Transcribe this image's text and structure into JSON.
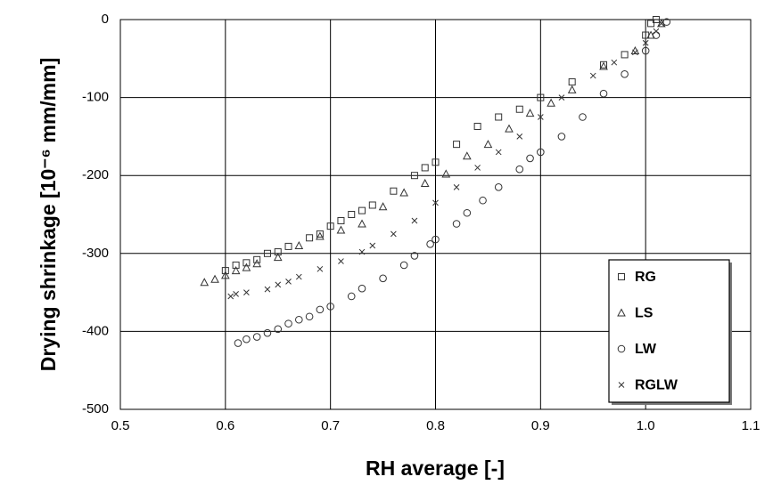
{
  "chart_data": {
    "type": "scatter",
    "xlabel": "RH average [-]",
    "ylabel": "Drying shrinkage [10⁻⁶ mm/mm]",
    "xlim": [
      0.5,
      1.1
    ],
    "xticks": [
      0.5,
      0.6,
      0.7,
      0.8,
      0.9,
      {
        "value": 1,
        "label": "1.0"
      },
      1.1
    ],
    "ylim": [
      -500,
      0
    ],
    "yticks": [
      0,
      -100,
      -200,
      -300,
      -400,
      -500
    ],
    "grid": true,
    "legend": "lower right",
    "series": [
      {
        "name": "RG",
        "color": "#333333",
        "marker": "square",
        "x": [
          0.6,
          0.61,
          0.62,
          0.63,
          0.64,
          0.65,
          0.66,
          0.68,
          0.69,
          0.7,
          0.71,
          0.72,
          0.73,
          0.74,
          0.76,
          0.78,
          0.79,
          0.8,
          0.82,
          0.84,
          0.86,
          0.88,
          0.9,
          0.93,
          0.96,
          0.98,
          1.0,
          1.005,
          1.01
        ],
        "values": [
          -322,
          -315,
          -312,
          -308,
          -300,
          -298,
          -291,
          -280,
          -275,
          -265,
          -258,
          -250,
          -245,
          -238,
          -220,
          -200,
          -190,
          -183,
          -160,
          -137,
          -125,
          -115,
          -100,
          -80,
          -58,
          -45,
          -20,
          -5,
          0
        ]
      },
      {
        "name": "LS",
        "color": "#333333",
        "marker": "triangle",
        "x": [
          0.58,
          0.59,
          0.6,
          0.61,
          0.62,
          0.63,
          0.65,
          0.67,
          0.69,
          0.71,
          0.73,
          0.75,
          0.77,
          0.79,
          0.81,
          0.83,
          0.85,
          0.87,
          0.89,
          0.91,
          0.93,
          0.96,
          0.99,
          1.005,
          1.015
        ],
        "values": [
          -337,
          -333,
          -328,
          -322,
          -318,
          -313,
          -305,
          -290,
          -278,
          -270,
          -262,
          -240,
          -222,
          -210,
          -198,
          -175,
          -160,
          -140,
          -120,
          -107,
          -90,
          -60,
          -40,
          -20,
          -5
        ]
      },
      {
        "name": "LW",
        "color": "#333333",
        "marker": "circle",
        "x": [
          0.612,
          0.62,
          0.63,
          0.64,
          0.65,
          0.66,
          0.67,
          0.68,
          0.69,
          0.7,
          0.72,
          0.73,
          0.75,
          0.77,
          0.78,
          0.795,
          0.8,
          0.82,
          0.83,
          0.845,
          0.86,
          0.88,
          0.89,
          0.9,
          0.92,
          0.94,
          0.96,
          0.98,
          1.0,
          1.01,
          1.02
        ],
        "values": [
          -415,
          -410,
          -407,
          -402,
          -397,
          -390,
          -385,
          -381,
          -372,
          -368,
          -355,
          -345,
          -332,
          -315,
          -303,
          -288,
          -282,
          -262,
          -248,
          -232,
          -215,
          -192,
          -178,
          -170,
          -150,
          -125,
          -95,
          -70,
          -40,
          -20,
          -3
        ]
      },
      {
        "name": "RGLW",
        "color": "#333333",
        "marker": "cross",
        "x": [
          0.605,
          0.61,
          0.62,
          0.64,
          0.65,
          0.66,
          0.67,
          0.69,
          0.71,
          0.73,
          0.74,
          0.76,
          0.78,
          0.8,
          0.82,
          0.84,
          0.86,
          0.88,
          0.9,
          0.92,
          0.95,
          0.97,
          0.99,
          1.0,
          1.01,
          1.015
        ],
        "values": [
          -355,
          -352,
          -350,
          -346,
          -340,
          -336,
          -330,
          -320,
          -310,
          -298,
          -290,
          -275,
          -258,
          -235,
          -215,
          -190,
          -170,
          -150,
          -125,
          -100,
          -72,
          -55,
          -42,
          -30,
          -15,
          -5
        ]
      }
    ]
  }
}
